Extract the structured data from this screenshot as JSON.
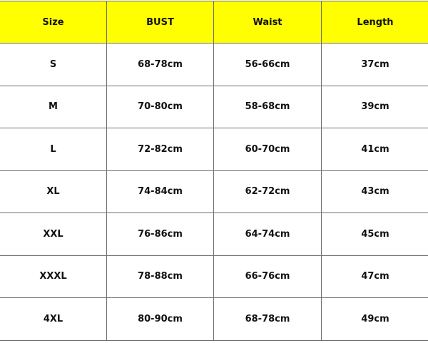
{
  "header_color": "#ffff00",
  "columns": [
    "Size",
    "BUST",
    "Waist",
    "Length"
  ],
  "rows": [
    [
      "S",
      "68-78cm",
      "56-66cm",
      "37cm"
    ],
    [
      "M",
      "70-80cm",
      "58-68cm",
      "39cm"
    ],
    [
      "L",
      "72-82cm",
      "60-70cm",
      "41cm"
    ],
    [
      "XL",
      "74-84cm",
      "62-72cm",
      "43cm"
    ],
    [
      "XXL",
      "76-86cm",
      "64-74cm",
      "45cm"
    ],
    [
      "XXXL",
      "78-88cm",
      "66-76cm",
      "47cm"
    ],
    [
      "4XL",
      "80-90cm",
      "68-78cm",
      "49cm"
    ]
  ]
}
